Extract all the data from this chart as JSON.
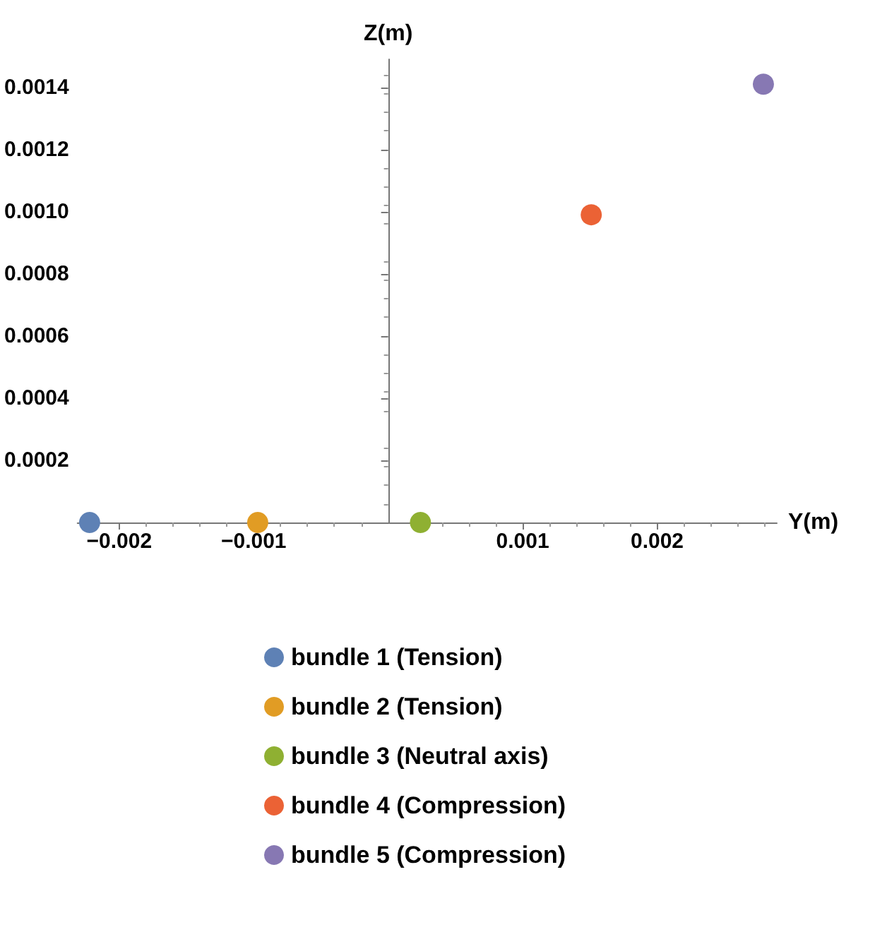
{
  "chart_data": {
    "type": "scatter",
    "xlabel": "Y(m)",
    "ylabel": "Z(m)",
    "series": [
      {
        "name": "bundle 1 (Tension)",
        "color": "#5e81b5",
        "x": [
          -0.00222
        ],
        "values": [
          0
        ]
      },
      {
        "name": "bundle 2 (Tension)",
        "color": "#e19c24",
        "x": [
          -0.00097
        ],
        "values": [
          0
        ]
      },
      {
        "name": "bundle 3 (Neutral axis)",
        "color": "#8fb032",
        "x": [
          0.00024
        ],
        "values": [
          0
        ]
      },
      {
        "name": "bundle 4 (Compression)",
        "color": "#eb6235",
        "x": [
          0.00151
        ],
        "values": [
          0.00099
        ]
      },
      {
        "name": "bundle 5 (Compression)",
        "color": "#8778b3",
        "x": [
          0.00279
        ],
        "values": [
          0.00141
        ]
      }
    ],
    "xlim": [
      -0.00231,
      0.00289
    ],
    "xticks": [
      {
        "value": -0.002,
        "label": "−0.002"
      },
      {
        "value": -0.001,
        "label": "−0.001"
      },
      0.001,
      0.002
    ],
    "ylim": [
      0,
      0.00149
    ],
    "yticks": [
      0.0002,
      0.0004,
      0.0006,
      0.0008,
      {
        "value": 0.001,
        "label": "0.0010"
      },
      0.0012,
      0.0014
    ],
    "grid": false,
    "legend": "bottom",
    "marker": "circle"
  }
}
